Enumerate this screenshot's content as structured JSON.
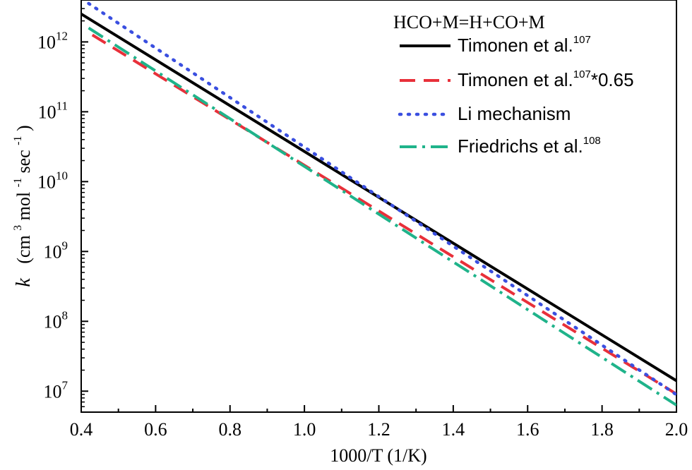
{
  "chart_data": {
    "type": "line",
    "title": "",
    "annotation": "HCO+M=H+CO+M",
    "xlabel": "1000/T (1/K)",
    "ylabel": {
      "symbol": "k",
      "open": "(cm",
      "sup1": "3",
      "mid1": " mol",
      "sup2": "-1",
      "mid2": " sec",
      "sup3": "-1",
      "close": ")"
    },
    "xlim": [
      0.4,
      2.0
    ],
    "xticks": [
      0.4,
      0.6,
      0.8,
      1.0,
      1.2,
      1.4,
      1.6,
      1.8,
      2.0
    ],
    "xtick_labels": [
      "0.4",
      "0.6",
      "0.8",
      "1.0",
      "1.2",
      "1.4",
      "1.6",
      "1.8",
      "2.0"
    ],
    "ylog": true,
    "ylim_log10": [
      6.7,
      12.6
    ],
    "yticks_log10": [
      7,
      8,
      9,
      10,
      11,
      12
    ],
    "ytick_labels": [
      {
        "base": "10",
        "exp": "7"
      },
      {
        "base": "10",
        "exp": "8"
      },
      {
        "base": "10",
        "exp": "9"
      },
      {
        "base": "10",
        "exp": "10"
      },
      {
        "base": "10",
        "exp": "11"
      },
      {
        "base": "10",
        "exp": "12"
      }
    ],
    "grid": false,
    "legend_position": "top-right",
    "series": [
      {
        "name": "Timonen et al.",
        "name_sup": "107",
        "name_suffix": "",
        "color": "#000000",
        "style": "solid",
        "x": [
          0.4,
          2.0
        ],
        "log10_y": [
          12.4,
          7.15
        ]
      },
      {
        "name": "Timonen et al.",
        "name_sup": "107",
        "name_suffix": "*0.65",
        "color": "#e8303a",
        "style": "dashed",
        "x": [
          0.43,
          2.0
        ],
        "log10_y": [
          12.1,
          6.96
        ]
      },
      {
        "name": "Li mechanism",
        "name_sup": "",
        "name_suffix": "",
        "color": "#3a4fe0",
        "style": "dotted",
        "x": [
          0.42,
          2.0
        ],
        "log10_y": [
          12.55,
          6.95
        ]
      },
      {
        "name": "Friedrichs et al.",
        "name_sup": "108",
        "name_suffix": "",
        "color": "#1fb38a",
        "style": "dashdot",
        "x": [
          0.42,
          2.0
        ],
        "log10_y": [
          12.2,
          6.8
        ]
      }
    ]
  }
}
